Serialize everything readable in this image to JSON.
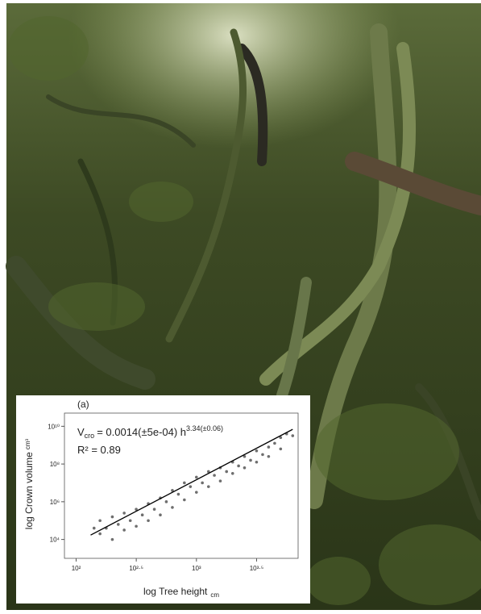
{
  "chart_data": {
    "type": "scatter",
    "panel_label": "(a)",
    "equation": {
      "lhs": "V",
      "lhs_sub": "cro",
      "rhs": "= 0.0014(±5e-04)  h",
      "exponent": "3.34(±0.06)"
    },
    "r_squared": "R² = 0.89",
    "x_label": "log Tree height",
    "x_label_unit": "cm",
    "y_label": "log Crown volume",
    "y_label_unit": "cm³",
    "x_log": true,
    "y_log": true,
    "xlim": [
      80,
      7000
    ],
    "ylim": [
      1000,
      50000000000
    ],
    "xticks": [
      {
        "value": 100,
        "label": "10²"
      },
      {
        "value": 316.23,
        "label": "10²·⁵"
      },
      {
        "value": 1000,
        "label": "10³"
      },
      {
        "value": 3162.3,
        "label": "10³·⁵"
      }
    ],
    "yticks": [
      {
        "value": 10000,
        "label": "10⁴"
      },
      {
        "value": 1000000,
        "label": "10⁶"
      },
      {
        "value": 100000000,
        "label": "10⁸"
      },
      {
        "value": 10000000000,
        "label": "10¹⁰"
      }
    ],
    "point_color": "#4a4a4a",
    "x": [
      158,
      158,
      178,
      200,
      200,
      224,
      251,
      251,
      282,
      316,
      316,
      355,
      398,
      398,
      447,
      501,
      501,
      562,
      631,
      631,
      708,
      794,
      794,
      891,
      1000,
      1000,
      1120,
      1260,
      1260,
      1410,
      1580,
      1580,
      1780,
      2000,
      2000,
      2240,
      2510,
      2510,
      2820,
      3160,
      3160,
      3550,
      3980,
      3980,
      4470,
      5010,
      5010,
      5620,
      6310,
      141
    ],
    "values": [
      20000,
      100000,
      39800,
      10000,
      158000,
      63100,
      31600,
      251000,
      100000,
      50100,
      398000,
      200000,
      100000,
      794000,
      398000,
      200000,
      1580000,
      1000000,
      501000,
      3980000,
      2510000,
      1260000,
      10000000,
      6310000,
      3160000,
      20000000,
      10000000,
      39800000,
      6310000,
      25100000,
      63100000,
      12600000,
      39800000,
      126000000,
      31600000,
      79400000,
      251000000,
      63100000,
      158000000,
      501000000,
      126000000,
      316000000,
      794000000,
      251000000,
      1260000000,
      2510000000,
      631000000,
      3980000000,
      3160000000,
      39800
    ],
    "fit_line": {
      "color": "#000000",
      "x": [
        132,
        6310
      ],
      "y": [
        17000,
        6890000000
      ]
    }
  }
}
